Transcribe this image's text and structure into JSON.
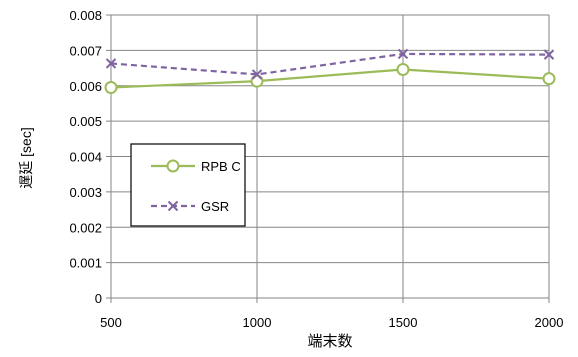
{
  "chart_data": {
    "type": "line",
    "title": "",
    "xlabel": "端末数",
    "ylabel": "遅延 [sec]",
    "x": [
      500,
      1000,
      1500,
      2000
    ],
    "x_tick_labels": [
      "500",
      "1000",
      "1500",
      "2000"
    ],
    "xlim": [
      500,
      2000
    ],
    "ylim": [
      0,
      0.008
    ],
    "y_ticks": [
      0,
      0.001,
      0.002,
      0.003,
      0.004,
      0.005,
      0.006,
      0.007,
      0.008
    ],
    "y_tick_labels": [
      "0",
      "0.001",
      "0.002",
      "0.003",
      "0.004",
      "0.005",
      "0.006",
      "0.007",
      "0.008"
    ],
    "grid": true,
    "legend_position": "center-left",
    "series": [
      {
        "name": "RPBC",
        "legend_label": "RPB C",
        "values": [
          0.00595,
          0.00613,
          0.00646,
          0.0062
        ],
        "color": "#9bbb59",
        "line_style": "solid",
        "marker": "circle"
      },
      {
        "name": "GSR",
        "legend_label": "GSR",
        "values": [
          0.00663,
          0.00632,
          0.0069,
          0.00688
        ],
        "color": "#8064a2",
        "line_style": "dashed",
        "marker": "x"
      }
    ]
  }
}
